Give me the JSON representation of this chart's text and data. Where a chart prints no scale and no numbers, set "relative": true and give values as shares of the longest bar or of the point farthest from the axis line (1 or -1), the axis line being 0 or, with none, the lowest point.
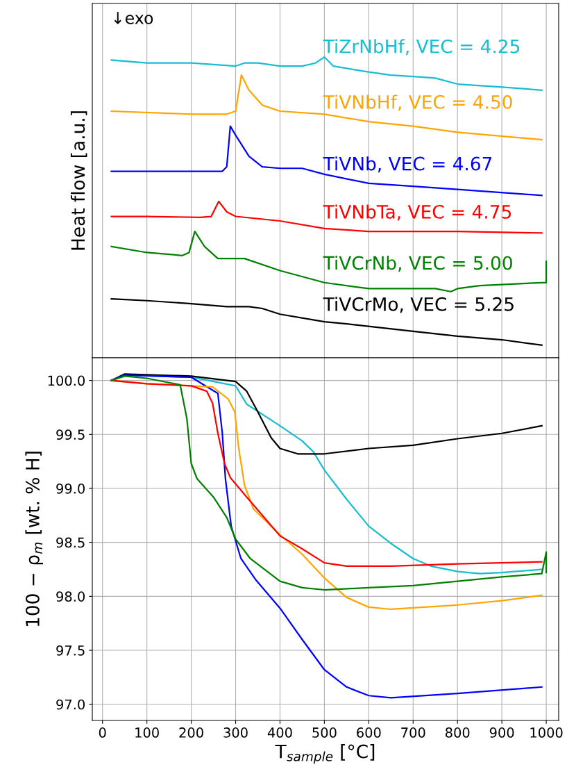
{
  "chart_data": [
    {
      "type": "line",
      "relative": true,
      "ylabel": "Heat flow [a.u.]",
      "annotations": [
        "↓exo"
      ],
      "xlim": [
        -23,
        1028
      ],
      "xticks": [
        0,
        100,
        200,
        300,
        400,
        500,
        600,
        700,
        800,
        900,
        1000
      ],
      "tick_labels": false,
      "grid": "x",
      "series": [
        {
          "name": "TiZrNbHf, VEC = 4.25",
          "color": "#17becf",
          "x": [
            20,
            100,
            200,
            300,
            320,
            350,
            400,
            450,
            480,
            500,
            520,
            600,
            650,
            700,
            750,
            800,
            900,
            990
          ],
          "values": [
            0.99,
            0.98,
            0.98,
            0.97,
            0.98,
            0.98,
            0.97,
            0.97,
            0.98,
            1.0,
            0.97,
            0.95,
            0.94,
            0.935,
            0.93,
            0.91,
            0.9,
            0.89
          ]
        },
        {
          "name": "TiVNbHf, VEC = 4.50",
          "color": "#ffa500",
          "x": [
            20,
            200,
            280,
            300,
            313,
            330,
            360,
            400,
            500,
            600,
            700,
            800,
            990
          ],
          "values": [
            0.82,
            0.81,
            0.81,
            0.82,
            0.94,
            0.89,
            0.84,
            0.82,
            0.81,
            0.785,
            0.77,
            0.75,
            0.725
          ]
        },
        {
          "name": "TiVNb, VEC = 4.67",
          "color": "#0000ff",
          "x": [
            20,
            200,
            270,
            280,
            288,
            300,
            330,
            360,
            400,
            450,
            500,
            600,
            700,
            800,
            990
          ],
          "values": [
            0.62,
            0.62,
            0.62,
            0.635,
            0.77,
            0.74,
            0.67,
            0.635,
            0.63,
            0.63,
            0.61,
            0.58,
            0.57,
            0.56,
            0.54
          ]
        },
        {
          "name": "TiVNbTa, VEC = 4.75",
          "color": "#ff0000",
          "x": [
            20,
            100,
            220,
            245,
            262,
            280,
            300,
            400,
            500,
            600,
            700,
            800,
            990
          ],
          "values": [
            0.47,
            0.47,
            0.467,
            0.47,
            0.52,
            0.485,
            0.47,
            0.455,
            0.43,
            0.42,
            0.42,
            0.42,
            0.415
          ]
        },
        {
          "name": "TiVCrNb, VEC = 5.00",
          "color": "#008000",
          "x": [
            20,
            100,
            180,
            195,
            208,
            230,
            260,
            320,
            400,
            500,
            600,
            700,
            750,
            785,
            800,
            850,
            990,
            1000,
            1000
          ],
          "values": [
            0.37,
            0.35,
            0.34,
            0.35,
            0.42,
            0.37,
            0.33,
            0.33,
            0.29,
            0.25,
            0.23,
            0.23,
            0.23,
            0.22,
            0.23,
            0.24,
            0.25,
            0.25,
            0.32
          ]
        },
        {
          "name": "TiVCrMo, VEC = 5.25",
          "color": "#000000",
          "x": [
            20,
            100,
            200,
            280,
            330,
            360,
            400,
            500,
            550,
            700,
            800,
            900,
            990
          ],
          "values": [
            0.196,
            0.19,
            0.18,
            0.17,
            0.17,
            0.164,
            0.145,
            0.12,
            0.113,
            0.088,
            0.072,
            0.06,
            0.042
          ]
        }
      ]
    },
    {
      "type": "line",
      "xlabel": "T$_{sample}$ [°C]",
      "ylabel": "100 − ρ$_{m}$ [wt. % H]",
      "xlim": [
        -23,
        1028
      ],
      "xticks": [
        0,
        100,
        200,
        300,
        400,
        500,
        600,
        700,
        800,
        900,
        1000
      ],
      "ylim": [
        96.85,
        100.21
      ],
      "yticks": [
        {
          "value": 97,
          "label": "97.0"
        },
        97.5,
        {
          "value": 98,
          "label": "98.0"
        },
        98.5,
        {
          "value": 99,
          "label": "99.0"
        },
        99.5,
        {
          "value": 100,
          "label": "100.0"
        }
      ],
      "grid": true,
      "series": [
        {
          "color": "#17becf",
          "x": [
            20,
            50,
            200,
            300,
            325,
            400,
            450,
            475,
            500,
            550,
            600,
            650,
            700,
            740,
            800,
            850,
            900,
            990
          ],
          "values": [
            100.0,
            100.05,
            100.03,
            99.95,
            99.78,
            99.58,
            99.44,
            99.34,
            99.17,
            98.9,
            98.65,
            98.49,
            98.35,
            98.28,
            98.23,
            98.21,
            98.22,
            98.25
          ]
        },
        {
          "color": "#000000",
          "x": [
            20,
            50,
            200,
            300,
            325,
            350,
            380,
            400,
            440,
            500,
            600,
            700,
            800,
            900,
            990
          ],
          "values": [
            100.0,
            100.06,
            100.04,
            99.99,
            99.9,
            99.71,
            99.47,
            99.37,
            99.32,
            99.32,
            99.37,
            99.4,
            99.46,
            99.51,
            99.58
          ]
        },
        {
          "color": "#0000ff",
          "x": [
            20,
            50,
            200,
            260,
            270,
            277,
            290,
            312,
            346,
            400,
            450,
            500,
            550,
            600,
            650,
            800,
            990
          ],
          "values": [
            100.0,
            100.05,
            100.03,
            99.88,
            99.51,
            99.09,
            98.65,
            98.35,
            98.15,
            97.89,
            97.6,
            97.32,
            97.16,
            97.08,
            97.06,
            97.1,
            97.16
          ]
        },
        {
          "color": "#ffa500",
          "x": [
            20,
            100,
            248,
            283,
            298,
            307,
            320,
            340,
            400,
            450,
            500,
            550,
            600,
            650,
            800,
            900,
            990
          ],
          "values": [
            100.0,
            99.97,
            99.94,
            99.83,
            99.71,
            99.37,
            99.03,
            98.81,
            98.57,
            98.39,
            98.17,
            97.99,
            97.9,
            97.88,
            97.92,
            97.96,
            98.01
          ]
        },
        {
          "color": "#ff0000",
          "x": [
            20,
            100,
            200,
            235,
            248,
            260,
            275,
            288,
            325,
            400,
            450,
            500,
            550,
            650,
            800,
            990
          ],
          "values": [
            100.0,
            99.97,
            99.95,
            99.9,
            99.79,
            99.51,
            99.23,
            99.1,
            98.92,
            98.56,
            98.44,
            98.31,
            98.28,
            98.28,
            98.3,
            98.32
          ]
        },
        {
          "color": "#008000",
          "x": [
            20,
            50,
            100,
            175,
            190,
            200,
            213,
            250,
            280,
            300,
            333,
            400,
            450,
            500,
            600,
            700,
            800,
            900,
            990,
            1000,
            1000
          ],
          "values": [
            100.0,
            100.04,
            100.02,
            99.96,
            99.65,
            99.23,
            99.09,
            98.92,
            98.73,
            98.53,
            98.35,
            98.14,
            98.08,
            98.06,
            98.08,
            98.1,
            98.14,
            98.18,
            98.21,
            98.41,
            98.22
          ]
        }
      ]
    }
  ]
}
